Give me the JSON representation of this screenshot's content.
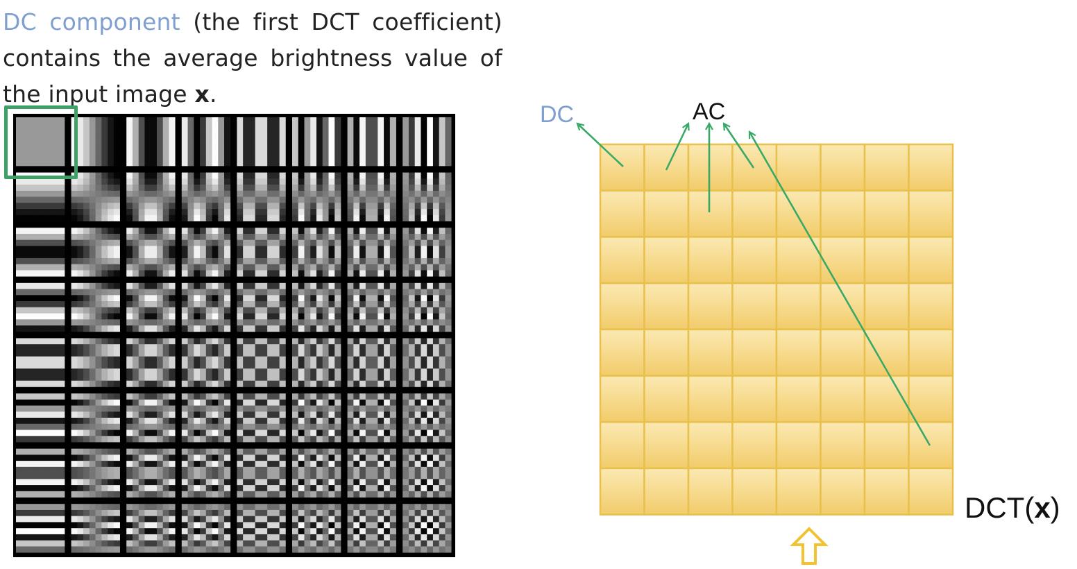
{
  "caption": {
    "dc_term": "DC component",
    "rest_part1": " (the first DCT coefficient) contains the average brightness value of the input image ",
    "input_var": "x",
    "end_punct": "."
  },
  "basis_grid": {
    "rows": 8,
    "cols": 8,
    "highlighted_cell": [
      0,
      0
    ]
  },
  "coefficient_grid": {
    "rows": 8,
    "cols": 8,
    "dc_label": "DC",
    "ac_label": "AC",
    "output_prefix": "DCT(",
    "output_var": "x",
    "output_suffix": ")"
  },
  "colors": {
    "dc_text": "#7f9fd0",
    "highlight": "#3ea066",
    "arrows": "#3aa866",
    "cell_fill_top": "#fbe9b3",
    "cell_fill_bottom": "#f2cc6a",
    "cell_border": "#e8c04c",
    "input_arrow": "#f1c232"
  },
  "icons": {
    "input_arrow": "up-arrow-outline-icon"
  }
}
